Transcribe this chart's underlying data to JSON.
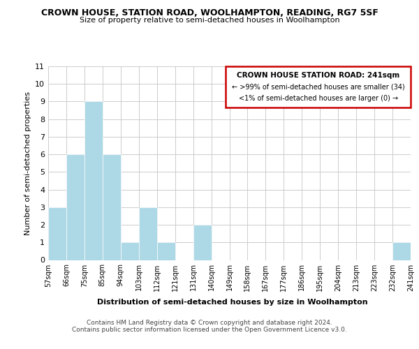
{
  "title": "CROWN HOUSE, STATION ROAD, WOOLHAMPTON, READING, RG7 5SF",
  "subtitle": "Size of property relative to semi-detached houses in Woolhampton",
  "xlabel": "Distribution of semi-detached houses by size in Woolhampton",
  "ylabel": "Number of semi-detached properties",
  "footnote1": "Contains HM Land Registry data © Crown copyright and database right 2024.",
  "footnote2": "Contains public sector information licensed under the Open Government Licence v3.0.",
  "bin_edges": [
    "57sqm",
    "66sqm",
    "75sqm",
    "85sqm",
    "94sqm",
    "103sqm",
    "112sqm",
    "121sqm",
    "131sqm",
    "140sqm",
    "149sqm",
    "158sqm",
    "167sqm",
    "177sqm",
    "186sqm",
    "195sqm",
    "204sqm",
    "213sqm",
    "223sqm",
    "232sqm",
    "241sqm"
  ],
  "bar_values": [
    3,
    6,
    9,
    6,
    1,
    3,
    1,
    0,
    2,
    0,
    0,
    0,
    0,
    0,
    0,
    0,
    0,
    0,
    0,
    1
  ],
  "bar_color": "#add8e6",
  "ylim": [
    0,
    11
  ],
  "yticks": [
    0,
    1,
    2,
    3,
    4,
    5,
    6,
    7,
    8,
    9,
    10,
    11
  ],
  "annotation_title": "CROWN HOUSE STATION ROAD: 241sqm",
  "annotation_line1": "← >99% of semi-detached houses are smaller (34)",
  "annotation_line2": "<1% of semi-detached houses are larger (0) →",
  "annotation_box_color": "#cc0000",
  "grid_color": "#cccccc"
}
